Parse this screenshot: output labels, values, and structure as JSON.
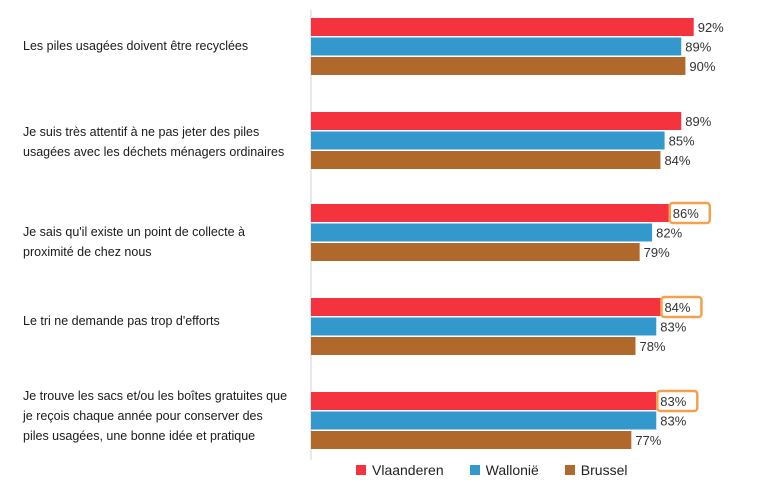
{
  "chart_data": {
    "type": "bar",
    "orientation": "horizontal",
    "categories": [
      "Les piles usagées doivent être recyclées",
      "Je suis très attentif à ne pas jeter des piles usagées avec les déchets ménagers ordinaires",
      "Je sais qu'il existe un point de collecte à proximité de chez nous",
      "Le tri ne demande pas trop d'efforts",
      "Je trouve les sacs et/ou les boîtes gratuites que je reçois chaque année pour conserver des piles usagées, une bonne idée et pratique"
    ],
    "series": [
      {
        "name": "Vlaanderen",
        "color": "#f5333f",
        "values": [
          92,
          89,
          86,
          84,
          83
        ],
        "labels": [
          "92%",
          "89%",
          "86%",
          "84%",
          "83%"
        ],
        "highlighted": [
          false,
          false,
          true,
          true,
          true
        ]
      },
      {
        "name": "Wallonië",
        "color": "#3399cc",
        "values": [
          89,
          85,
          82,
          83,
          83
        ],
        "labels": [
          "89%",
          "85%",
          "82%",
          "83%",
          "83%"
        ]
      },
      {
        "name": "Brussel",
        "color": "#b0692a",
        "values": [
          90,
          84,
          79,
          78,
          77
        ],
        "labels": [
          "90%",
          "84%",
          "79%",
          "78%",
          "77%"
        ]
      }
    ],
    "xlim": [
      0,
      100
    ],
    "highlight_color": "#f5a14c",
    "legend_position": "bottom",
    "grid": false
  }
}
